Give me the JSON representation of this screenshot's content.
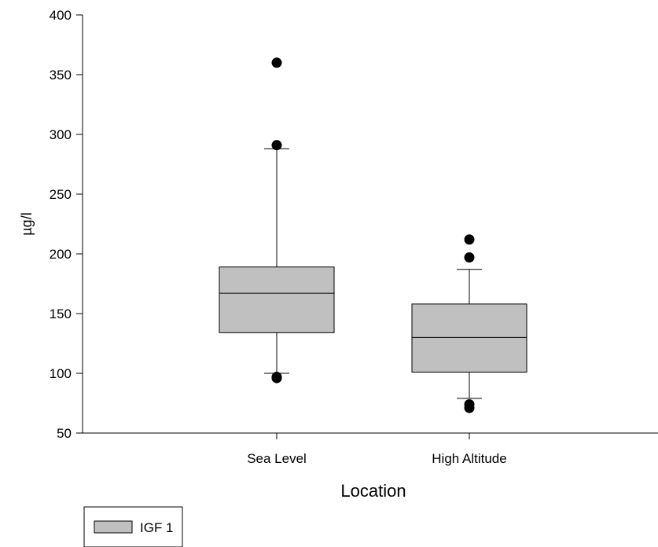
{
  "chart_data": {
    "type": "box",
    "title": "",
    "xlabel": "Location",
    "ylabel": "µg/l",
    "ylim": [
      50,
      400
    ],
    "yticks": [
      50,
      100,
      150,
      200,
      250,
      300,
      350,
      400
    ],
    "categories": [
      "Sea Level",
      "High Altitude"
    ],
    "series": [
      {
        "name": "IGF 1",
        "color": "#c0c0c0",
        "boxes": [
          {
            "category": "Sea Level",
            "whisker_low": 100,
            "q1": 134,
            "median": 167,
            "q3": 189,
            "whisker_high": 288,
            "outliers": [
              97,
              96,
              291,
              360
            ]
          },
          {
            "category": "High Altitude",
            "whisker_low": 79,
            "q1": 101,
            "median": 130,
            "q3": 158,
            "whisker_high": 187,
            "outliers": [
              74,
              71,
              197,
              212
            ]
          }
        ]
      }
    ],
    "legend": {
      "position": "bottom-left",
      "entries": [
        "IGF 1"
      ]
    },
    "grid": false
  }
}
